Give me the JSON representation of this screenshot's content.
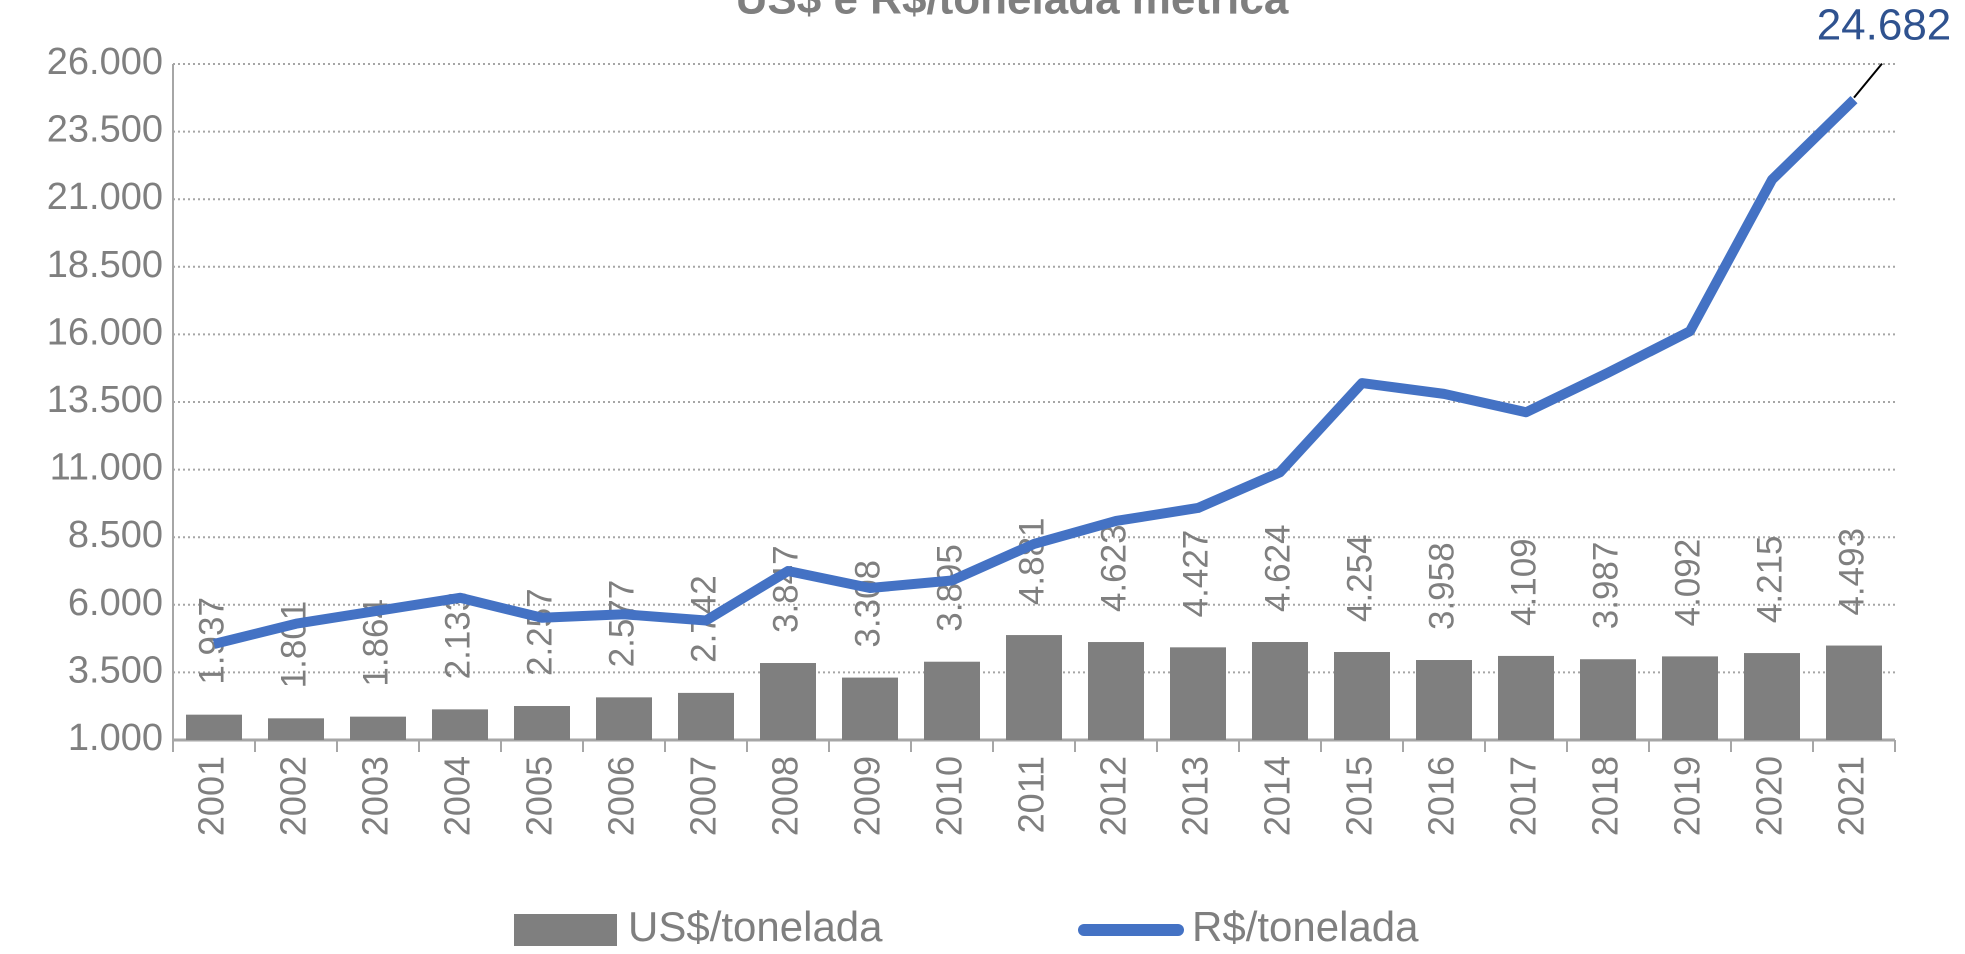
{
  "chart_data": {
    "type": "bar_line",
    "title": "US$ e R$/tonelada métrica",
    "categories": [
      "2001",
      "2002",
      "2003",
      "2004",
      "2005",
      "2006",
      "2007",
      "2008",
      "2009",
      "2010",
      "2011",
      "2012",
      "2013",
      "2014",
      "2015",
      "2016",
      "2017",
      "2018",
      "2019",
      "2020",
      "2021"
    ],
    "series": [
      {
        "name": "US$/tonelada",
        "color": "#7f7f7f",
        "kind": "bar",
        "values": [
          1937,
          1801,
          1864,
          2133,
          2257,
          2577,
          2742,
          3847,
          3308,
          3895,
          4881,
          4623,
          4427,
          4624,
          4254,
          3958,
          4109,
          3987,
          4092,
          4215,
          4493
        ],
        "value_labels": [
          "1.937",
          "1.801",
          "1.864",
          "2.133",
          "2.257",
          "2.577",
          "2.742",
          "3.847",
          "3.308",
          "3.895",
          "4.881",
          "4.623",
          "4.427",
          "4.624",
          "4.254",
          "3.958",
          "4.109",
          "3.987",
          "4.092",
          "4.215",
          "4.493"
        ]
      },
      {
        "name": "R$/tonelada",
        "color": "#4472c4",
        "kind": "line",
        "values": [
          4550,
          5300,
          5780,
          6260,
          5520,
          5650,
          5420,
          7250,
          6620,
          6900,
          8250,
          9100,
          9580,
          10900,
          14200,
          13800,
          13120,
          14580,
          16120,
          21720,
          24682
        ],
        "value_labels": [
          null,
          null,
          null,
          null,
          null,
          null,
          null,
          null,
          null,
          null,
          null,
          null,
          null,
          null,
          null,
          null,
          null,
          null,
          null,
          null,
          "24.682"
        ]
      }
    ],
    "ylim": [
      1000,
      26000
    ],
    "yticks": [
      {
        "value": 1000,
        "label": "1.000"
      },
      {
        "value": 3500,
        "label": "3.500"
      },
      {
        "value": 6000,
        "label": "6.000"
      },
      {
        "value": 8500,
        "label": "8.500"
      },
      {
        "value": 11000,
        "label": "11.000"
      },
      {
        "value": 13500,
        "label": "13.500"
      },
      {
        "value": 16000,
        "label": "16.000"
      },
      {
        "value": 18500,
        "label": "18.500"
      },
      {
        "value": 21000,
        "label": "21.000"
      },
      {
        "value": 23500,
        "label": "23.500"
      },
      {
        "value": 26000,
        "label": "26.000"
      }
    ],
    "grid": true,
    "legend": "bottom"
  }
}
